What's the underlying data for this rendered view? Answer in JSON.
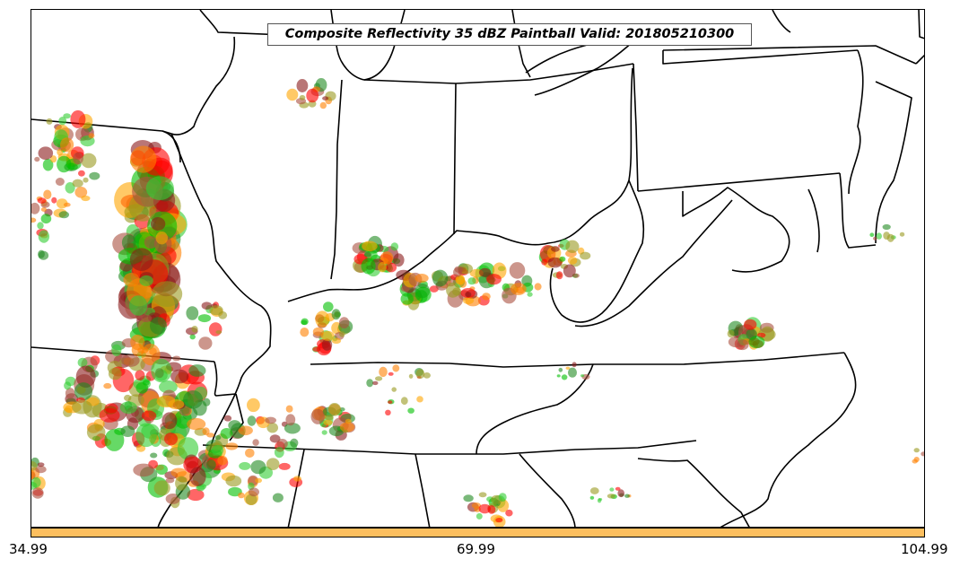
{
  "title": "Composite Reflectivity 35 dBZ Paintball Valid: 201805210300",
  "colorbar": {
    "color": "#fdbf5f",
    "ticks": [
      "34.99",
      "69.99",
      "104.99"
    ]
  },
  "ensemble_colors": [
    "#ff0000",
    "#ff8000",
    "#ffa500",
    "#8b1a1a",
    "#228b22",
    "#32cd32",
    "#00c000",
    "#9a9a20",
    "#aa5040"
  ]
}
